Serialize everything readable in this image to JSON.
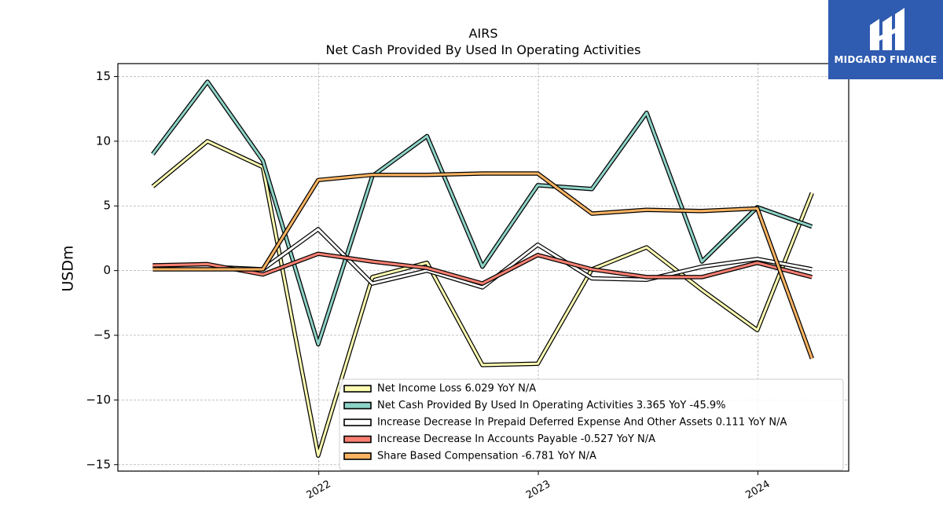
{
  "chart_data": {
    "type": "line",
    "title": "AIRS",
    "subtitle": "Net Cash Provided By Used In Operating Activities",
    "xlabel": "",
    "ylabel": "USDm",
    "ylim": [
      -15.5,
      16
    ],
    "yticks": [
      15,
      10,
      5,
      0,
      -5,
      -10,
      -15
    ],
    "ytick_labels": [
      "15",
      "10",
      "5",
      "0",
      "−5",
      "−10",
      "−15"
    ],
    "xticks": [
      "2022-01-01",
      "2023-01-01",
      "2024-01-01"
    ],
    "xtick_labels": [
      "2022",
      "2023",
      "2024"
    ],
    "xlim": [
      "2021-02-01",
      "2024-05-31"
    ],
    "grid": true,
    "legend_position": "bottom-right",
    "x": [
      "2021-03-31",
      "2021-06-30",
      "2021-09-30",
      "2021-12-31",
      "2022-03-31",
      "2022-06-30",
      "2022-09-30",
      "2022-12-31",
      "2023-03-31",
      "2023-06-30",
      "2023-09-30",
      "2023-12-31",
      "2024-03-31"
    ],
    "series": [
      {
        "name": "Net Income Loss",
        "legend_label": "Net Income Loss  6.029 YoY N/A",
        "color": "#ffffb3",
        "values": [
          6.5,
          10.0,
          8.0,
          -14.3,
          -0.5,
          0.6,
          -7.3,
          -7.2,
          0.1,
          1.8,
          -1.5,
          -4.6,
          6.0
        ]
      },
      {
        "name": "Net Cash Provided By Used In Operating Activities",
        "legend_label": "Net Cash Provided By Used In Operating Activities  3.365 YoY -45.9%",
        "color": "#8dd3c7",
        "values": [
          9.0,
          14.6,
          8.5,
          -5.7,
          7.3,
          10.4,
          0.3,
          6.6,
          6.3,
          12.2,
          0.7,
          4.9,
          3.4
        ]
      },
      {
        "name": "Increase Decrease In Prepaid Deferred Expense And Other Assets",
        "legend_label": "Increase Decrease In Prepaid Deferred Expense And Other Assets  0.111 YoY N/A",
        "color": "#ffffff",
        "values": [
          0.4,
          0.3,
          0.1,
          3.2,
          -1.0,
          0.0,
          -1.3,
          2.0,
          -0.6,
          -0.7,
          0.3,
          0.9,
          0.1
        ]
      },
      {
        "name": "Increase Decrease In Accounts Payable",
        "legend_label": "Increase Decrease In Accounts Payable  -0.527 YoY N/A",
        "color": "#fb8072",
        "values": [
          0.4,
          0.5,
          -0.3,
          1.3,
          0.7,
          0.2,
          -1.0,
          1.2,
          0.1,
          -0.5,
          -0.5,
          0.6,
          -0.5
        ]
      },
      {
        "name": "Share Based Compensation",
        "legend_label": "Share Based Compensation  -6.781 YoY N/A",
        "color": "#fdb462",
        "values": [
          0.1,
          0.1,
          0.1,
          7.0,
          7.4,
          7.4,
          7.5,
          7.5,
          4.4,
          4.7,
          4.6,
          4.8,
          -6.8
        ]
      }
    ]
  },
  "logo": {
    "text": "MIDGARD FINANCE"
  }
}
